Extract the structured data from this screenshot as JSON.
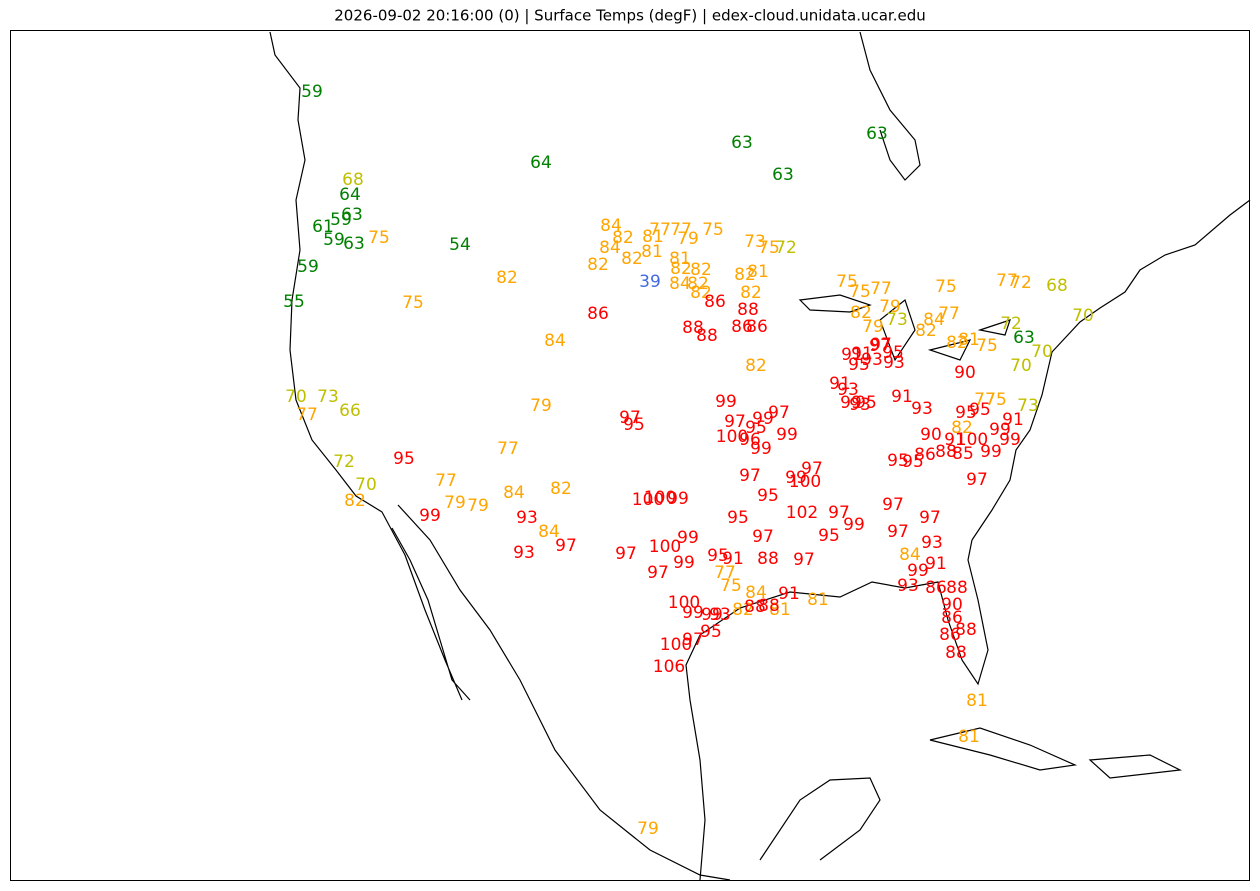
{
  "title": "2026-09-02 20:16:00 (0) | Surface Temps (degF) | edex-cloud.unidata.ucar.edu",
  "labels": [
    {
      "color": "#008000",
      "temps": [
        59,
        64,
        63,
        61,
        59,
        59,
        63,
        59,
        55,
        64,
        54,
        63,
        63,
        63,
        63
      ]
    },
    {
      "color": "#bfbf00",
      "temps": [
        68,
        73,
        66,
        70,
        72,
        70,
        72,
        68,
        72,
        70,
        73,
        70,
        73,
        70
      ]
    },
    {
      "color": "#4169e1",
      "temps": [
        39
      ]
    },
    {
      "color": "#ffa500",
      "temps": [
        75,
        75,
        82,
        84,
        79,
        77,
        77,
        79,
        79,
        84,
        82,
        84,
        82,
        77,
        84,
        82,
        84,
        82,
        82,
        81,
        77,
        77,
        75,
        79,
        81,
        81,
        82,
        82,
        84,
        82,
        82,
        81,
        82,
        82,
        82,
        73,
        75,
        75,
        75,
        77,
        82,
        79,
        79,
        82,
        84,
        77,
        75,
        77,
        72,
        82,
        81,
        75,
        77,
        75,
        82,
        84,
        81,
        84,
        77,
        75,
        82,
        81,
        81,
        81,
        79
      ]
    },
    {
      "color": "#ff0000",
      "temps": [
        86,
        86,
        88,
        88,
        88,
        86,
        86,
        97,
        95,
        99,
        97,
        97,
        99,
        95,
        100,
        96,
        99,
        99,
        97,
        97,
        99,
        100,
        95,
        100,
        99,
        100,
        95,
        102,
        97,
        99,
        95,
        97,
        99,
        100,
        99,
        97,
        97,
        95,
        91,
        88,
        97,
        93,
        93,
        97,
        99,
        95,
        91,
        91,
        97,
        95,
        93,
        95,
        93,
        91,
        93,
        99,
        95,
        93,
        91,
        93,
        90,
        90,
        95,
        95,
        86,
        88,
        85,
        99,
        91,
        100,
        99,
        99,
        95,
        97,
        97,
        97,
        97,
        93,
        91,
        99,
        93,
        86,
        88,
        90,
        86,
        88,
        86,
        88,
        100,
        99,
        99,
        93,
        88,
        88,
        91,
        100,
        97,
        95,
        106,
        97,
        95,
        91
      ]
    }
  ]
}
